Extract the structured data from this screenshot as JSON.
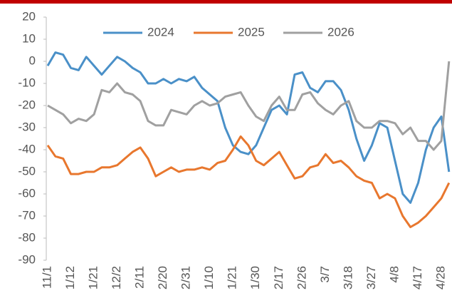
{
  "chart_data": {
    "type": "line",
    "categories": [
      "11/1",
      null,
      null,
      "1/12",
      null,
      null,
      "1/21",
      null,
      null,
      "12/2",
      null,
      null,
      "2/11",
      null,
      null,
      "2/20",
      null,
      null,
      "2/31",
      null,
      null,
      "1/10",
      null,
      null,
      "1/21",
      null,
      null,
      "1/30",
      null,
      null,
      "2/17",
      null,
      null,
      "2/26",
      null,
      null,
      "3/7",
      null,
      null,
      "3/18",
      null,
      null,
      "3/27",
      null,
      null,
      "4/8",
      null,
      null,
      "4/17",
      null,
      null,
      "4/28",
      null
    ],
    "series": [
      {
        "name": "2024",
        "color": "#4a90c8",
        "values": [
          -2,
          4,
          3,
          -3,
          -4,
          2,
          -2,
          -6,
          -2,
          2,
          0,
          -3,
          -5,
          -10,
          -10,
          -8,
          -10,
          -8,
          -9,
          -7,
          -12,
          -15,
          -18,
          -30,
          -38,
          -41,
          -42,
          -38,
          -30,
          -22,
          -20,
          -24,
          -6,
          -5,
          -12,
          -14,
          -9,
          -9,
          -13,
          -22,
          -35,
          -45,
          -38,
          -28,
          -30,
          -45,
          -60,
          -64,
          -55,
          -40,
          -30,
          -25,
          -50
        ]
      },
      {
        "name": "2025",
        "color": "#e8772e",
        "values": [
          -38,
          -43,
          -44,
          -51,
          -51,
          -50,
          -50,
          -48,
          -48,
          -47,
          -44,
          -41,
          -39,
          -44,
          -52,
          -50,
          -48,
          -50,
          -49,
          -49,
          -48,
          -49,
          -46,
          -45,
          -40,
          -34,
          -38,
          -45,
          -47,
          -44,
          -41,
          -47,
          -53,
          -52,
          -48,
          -47,
          -42,
          -46,
          -45,
          -48,
          -52,
          -54,
          -55,
          -62,
          -60,
          -62,
          -70,
          -75,
          -73,
          -70,
          -66,
          -62,
          -55
        ]
      },
      {
        "name": "2026",
        "color": "#a0a0a0",
        "values": [
          -20,
          -22,
          -24,
          -28,
          -26,
          -27,
          -24,
          -13,
          -14,
          -10,
          -14,
          -15,
          -18,
          -27,
          -29,
          -29,
          -22,
          -23,
          -24,
          -20,
          -18,
          -20,
          -19,
          -16,
          -15,
          -14,
          -20,
          -25,
          -27,
          -20,
          -16,
          -22,
          -22,
          -15,
          -14,
          -19,
          -22,
          -24,
          -20,
          -18,
          -27,
          -30,
          -30,
          -27,
          -27,
          -28,
          -33,
          -30,
          -36,
          -36,
          -40,
          -36,
          0
        ]
      }
    ],
    "ylim": [
      -90,
      20
    ],
    "yticks": [
      20,
      10,
      0,
      -10,
      -20,
      -30,
      -40,
      -50,
      -60,
      -70,
      -80,
      -90
    ],
    "grid": false,
    "legend": "top"
  }
}
